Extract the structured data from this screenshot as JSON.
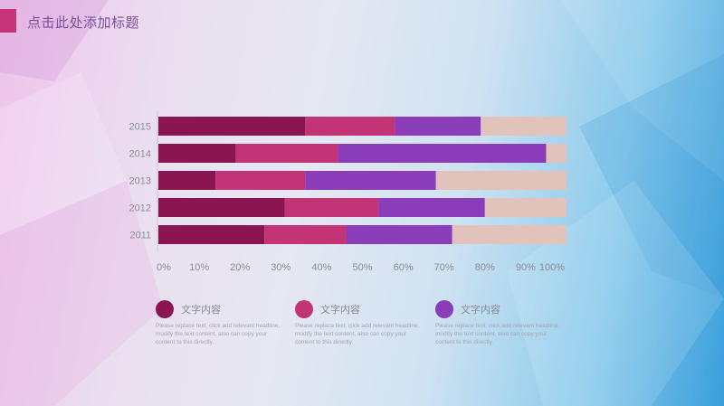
{
  "header": {
    "title": "点击此处添加标题"
  },
  "colors": {
    "accent_bar": "#c8347a",
    "series": [
      "#8a1550",
      "#c33477",
      "#8b3cb8",
      "#e1c3bc"
    ]
  },
  "chart_data": {
    "type": "bar",
    "orientation": "horizontal",
    "stacked": "percent",
    "categories": [
      "2015",
      "2014",
      "2013",
      "2012",
      "2011"
    ],
    "series": [
      {
        "values": [
          36,
          19,
          14,
          31,
          26
        ]
      },
      {
        "values": [
          22,
          25,
          22,
          23,
          20
        ]
      },
      {
        "values": [
          21,
          51,
          32,
          26,
          26
        ]
      },
      {
        "values": [
          21,
          5,
          32,
          20,
          28
        ]
      }
    ],
    "xlim": [
      0,
      100
    ],
    "x_ticks": [
      "0%",
      "10%",
      "20%",
      "30%",
      "40%",
      "50%",
      "60%",
      "70%",
      "80%",
      "90%",
      "100%"
    ],
    "grid": false,
    "legend_position": "bottom"
  },
  "legend": [
    {
      "label": "文字内容",
      "description": "Please replace text, click add relevant headline, modify the text content, also can copy your content to this directly."
    },
    {
      "label": "文字内容",
      "description": "Please replace text, click add relevant headline, modify the text content, also can copy your content to this directly."
    },
    {
      "label": "文字内容",
      "description": "Please replace text, click add relevant headline, modify the text content, also can copy your content to this directly."
    }
  ]
}
